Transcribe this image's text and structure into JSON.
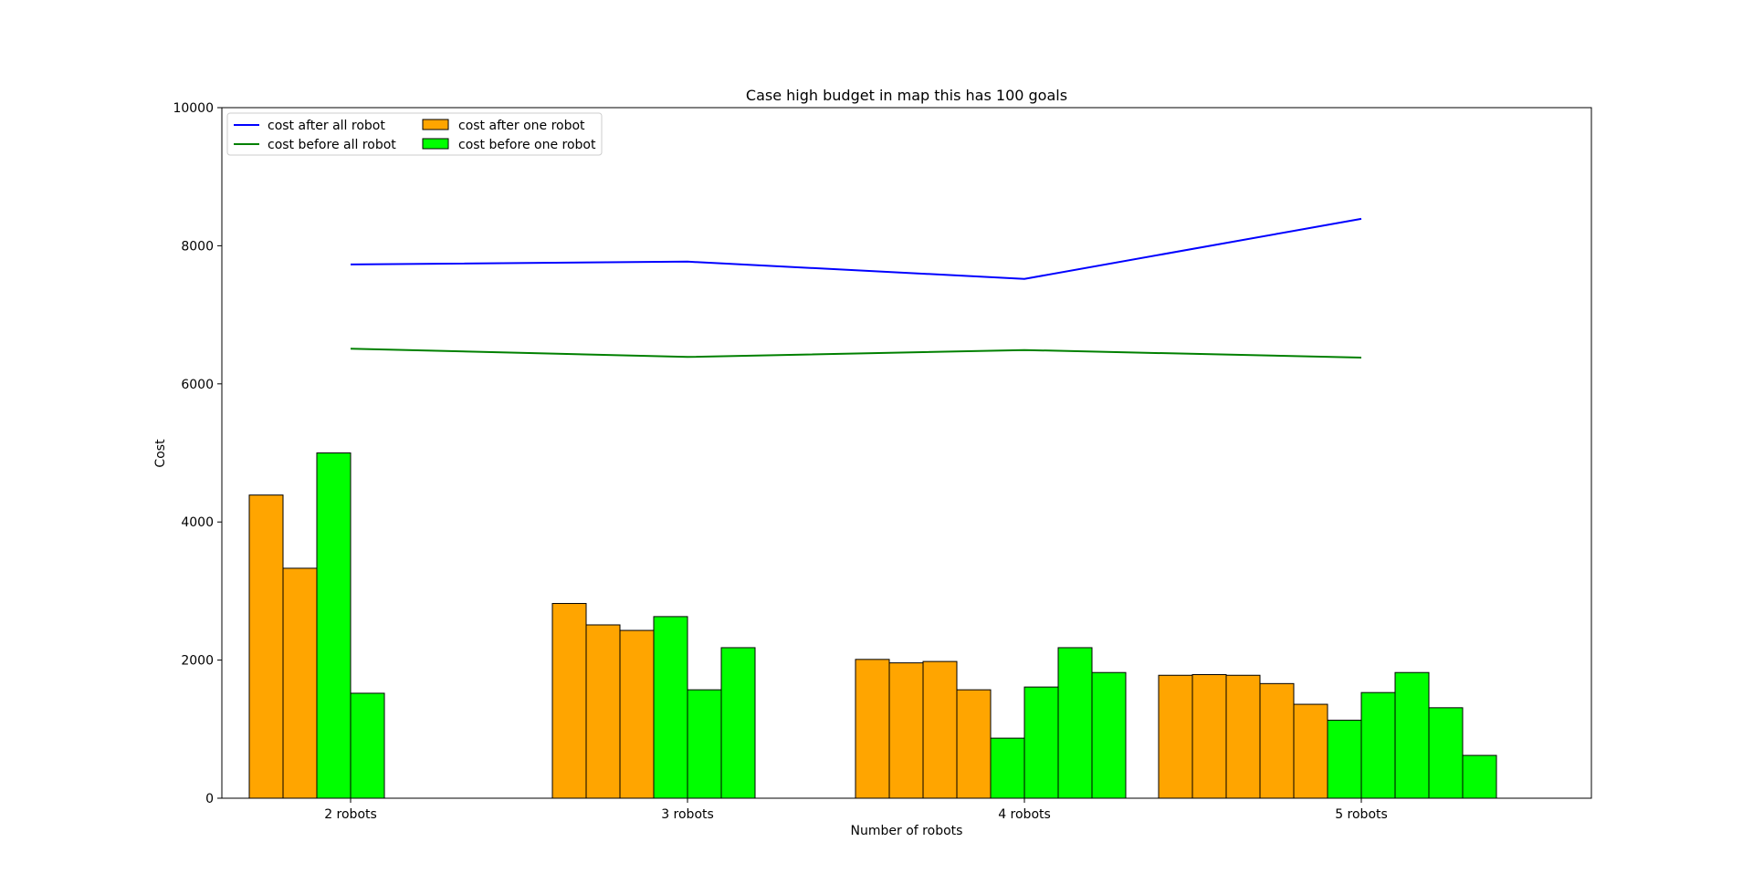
{
  "chart_data": {
    "type": "bar",
    "title": "Case high budget in map this has 100 goals",
    "xlabel": "Number of robots",
    "ylabel": "Cost",
    "ylim": [
      0,
      10000
    ],
    "yticks": [
      0,
      2000,
      4000,
      6000,
      8000,
      10000
    ],
    "categories": [
      "2 robots",
      "3 robots",
      "4 robots",
      "5 robots"
    ],
    "grid": false,
    "legend_placement": "top-left",
    "legend": [
      {
        "label": "cost after all robot",
        "kind": "line",
        "color": "#0000ff"
      },
      {
        "label": "cost before all robot",
        "kind": "line",
        "color": "#008000"
      },
      {
        "label": "cost after one robot",
        "kind": "bar",
        "color": "#ffa500"
      },
      {
        "label": "cost before one robot",
        "kind": "bar",
        "color": "#00ff00"
      }
    ],
    "line_series": [
      {
        "name": "cost after all robot",
        "color": "#0000ff",
        "values": [
          7730,
          7770,
          7520,
          8390
        ]
      },
      {
        "name": "cost before all robot",
        "color": "#008000",
        "values": [
          6510,
          6390,
          6490,
          6380
        ]
      }
    ],
    "bar_groups": [
      {
        "category": "2 robots",
        "after_one_robot": [
          4390,
          3330
        ],
        "before_one_robot": [
          5000,
          1520
        ]
      },
      {
        "category": "3 robots",
        "after_one_robot": [
          2820,
          2510,
          2430
        ],
        "before_one_robot": [
          2630,
          1570,
          2180
        ]
      },
      {
        "category": "4 robots",
        "after_one_robot": [
          2010,
          1960,
          1980,
          1570
        ],
        "before_one_robot": [
          870,
          1610,
          2180,
          1820
        ]
      },
      {
        "category": "5 robots",
        "after_one_robot": [
          1780,
          1790,
          1780,
          1660,
          1360
        ],
        "before_one_robot": [
          1130,
          1530,
          1820,
          1310,
          620
        ]
      }
    ],
    "bar_colors": {
      "after_one_robot": "#ffa500",
      "before_one_robot": "#00ff00",
      "edge": "#000000"
    }
  }
}
